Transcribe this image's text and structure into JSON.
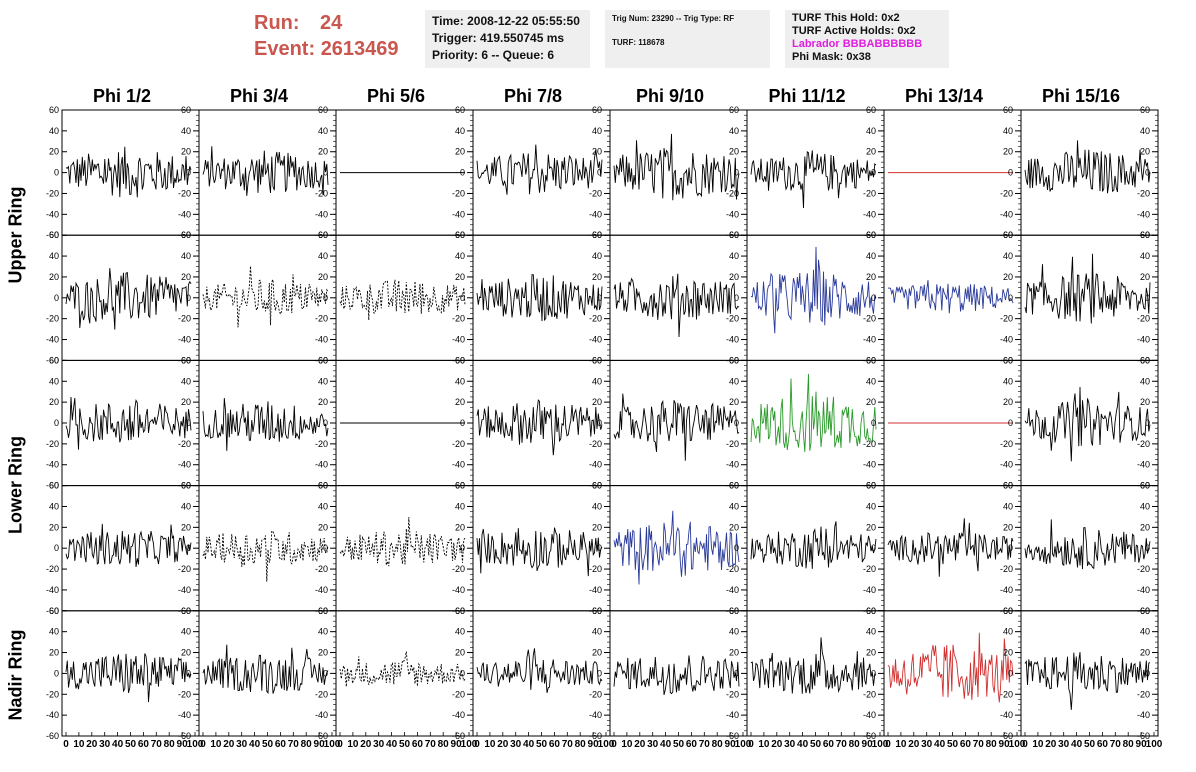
{
  "header": {
    "run_label": "Run:",
    "run_value": "24",
    "event_label": "Event:",
    "event_value": "2613469",
    "box1": [
      "Time: 2008-12-22 05:55:50",
      "Trigger: 419.550745 ms",
      "Priority: 6 -- Queue: 6"
    ],
    "box2": {
      "line1": "Trig Num: 23290 -- Trig Type: RF",
      "line2": "TURF: 118678"
    },
    "box3": {
      "line1": "TURF This Hold: 0x2",
      "line2": "TURF Active Holds: 0x2",
      "labrador": "Labrador BBBABBBBBB",
      "line4": "Phi Mask: 0x38"
    }
  },
  "columns": [
    "Phi 1/2",
    "Phi 3/4",
    "Phi 5/6",
    "Phi 7/8",
    "Phi 9/10",
    "Phi 11/12",
    "Phi 13/14",
    "Phi 15/16"
  ],
  "rings": [
    "Upper Ring",
    "Lower Ring",
    "Nadir Ring"
  ],
  "colors": {
    "header_red": "#c9574f",
    "magenta": "#e020e0",
    "trace_black": "#000000",
    "trace_blue": "#2a3a9a",
    "trace_green": "#2a9a2a",
    "trace_red": "#d03030",
    "info_bg": "#efefef"
  },
  "chart_data": {
    "type": "line",
    "ylim": [
      -60,
      60
    ],
    "xlim": [
      0,
      100
    ],
    "y_ticks": [
      "60",
      "40",
      "20",
      "0",
      "-20",
      "-40",
      "-60"
    ],
    "x_tick_labels": [
      "0",
      "10",
      "20",
      "30",
      "40",
      "50",
      "60",
      "70",
      "80",
      "90",
      "100"
    ],
    "panel_rows": 5,
    "panel_cols": 8,
    "panels": [
      [
        {
          "style": "solid",
          "color": "black",
          "amp": 16
        },
        {
          "style": "solid",
          "color": "black",
          "amp": 14
        },
        {
          "style": "flat",
          "color": "black",
          "amp": 0
        },
        {
          "style": "solid",
          "color": "black",
          "amp": 14
        },
        {
          "style": "solid",
          "color": "black",
          "amp": 17
        },
        {
          "style": "solid",
          "color": "black",
          "amp": 13
        },
        {
          "style": "flat",
          "color": "red",
          "amp": 0
        },
        {
          "style": "solid",
          "color": "black",
          "amp": 15
        }
      ],
      [
        {
          "style": "solid",
          "color": "black",
          "amp": 16
        },
        {
          "style": "dotted",
          "color": "black",
          "amp": 12
        },
        {
          "style": "dotted",
          "color": "black",
          "amp": 12
        },
        {
          "style": "solid",
          "color": "black",
          "amp": 15
        },
        {
          "style": "solid",
          "color": "black",
          "amp": 15
        },
        {
          "style": "solid",
          "color": "blue",
          "amp": 18
        },
        {
          "style": "solid",
          "color": "blue",
          "amp": 10
        },
        {
          "style": "solid",
          "color": "black",
          "amp": 16
        }
      ],
      [
        {
          "style": "solid",
          "color": "black",
          "amp": 15
        },
        {
          "style": "solid",
          "color": "black",
          "amp": 14
        },
        {
          "style": "flat",
          "color": "black",
          "amp": 0
        },
        {
          "style": "solid",
          "color": "black",
          "amp": 15
        },
        {
          "style": "solid",
          "color": "black",
          "amp": 15
        },
        {
          "style": "solid",
          "color": "green",
          "amp": 20
        },
        {
          "style": "flat",
          "color": "red",
          "amp": 0
        },
        {
          "style": "solid",
          "color": "black",
          "amp": 15
        }
      ],
      [
        {
          "style": "solid",
          "color": "black",
          "amp": 12
        },
        {
          "style": "dotted",
          "color": "black",
          "amp": 12
        },
        {
          "style": "dotted",
          "color": "black",
          "amp": 12
        },
        {
          "style": "solid",
          "color": "black",
          "amp": 14
        },
        {
          "style": "solid",
          "color": "blue",
          "amp": 18
        },
        {
          "style": "solid",
          "color": "black",
          "amp": 13
        },
        {
          "style": "solid",
          "color": "black",
          "amp": 11
        },
        {
          "style": "solid",
          "color": "black",
          "amp": 13
        }
      ],
      [
        {
          "style": "solid",
          "color": "black",
          "amp": 14
        },
        {
          "style": "solid",
          "color": "black",
          "amp": 13
        },
        {
          "style": "dotted",
          "color": "black",
          "amp": 9
        },
        {
          "style": "solid",
          "color": "black",
          "amp": 11
        },
        {
          "style": "solid",
          "color": "black",
          "amp": 14
        },
        {
          "style": "solid",
          "color": "black",
          "amp": 14
        },
        {
          "style": "solid",
          "color": "red",
          "amp": 19
        },
        {
          "style": "solid",
          "color": "black",
          "amp": 14
        }
      ]
    ]
  }
}
